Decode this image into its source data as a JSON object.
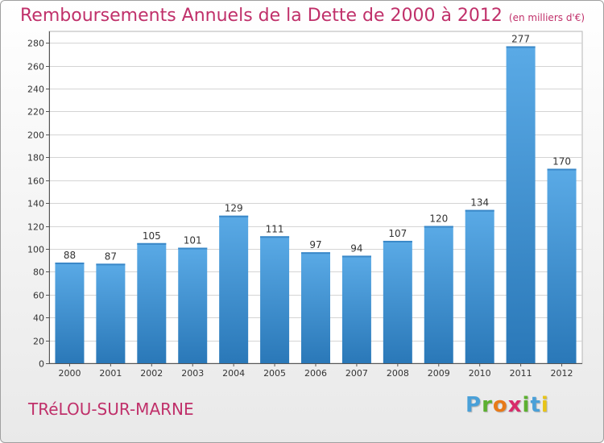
{
  "title": "Remboursements Annuels de la Dette de 2000 à 2012",
  "unit_note": "(en milliers d'€)",
  "commune": "TRéLOU-SUR-MARNE",
  "brand": {
    "name": "Proxiti",
    "letters": [
      "P",
      "r",
      "o",
      "x",
      "i",
      "t",
      "i"
    ],
    "letter_colors": [
      "#4aa0d8",
      "#5cb030",
      "#e87a18",
      "#d82a6a",
      "#5cb030",
      "#4aa0d8",
      "#e8c418"
    ]
  },
  "colors": {
    "bar_top": "#5aaae6",
    "bar_bottom": "#2a78b8",
    "title": "#c0306a",
    "text": "#333333"
  },
  "chart_data": {
    "type": "bar",
    "categories": [
      "2000",
      "2001",
      "2002",
      "2003",
      "2004",
      "2005",
      "2006",
      "2007",
      "2008",
      "2009",
      "2010",
      "2011",
      "2012"
    ],
    "values": [
      88,
      87,
      105,
      101,
      129,
      111,
      97,
      94,
      107,
      120,
      134,
      277,
      170
    ],
    "data_labels": [
      "88",
      "87",
      "105",
      "101",
      "129",
      "111",
      "97",
      "94",
      "107",
      "120",
      "134",
      "277",
      "170"
    ],
    "yticks": [
      0,
      20,
      40,
      60,
      80,
      100,
      120,
      140,
      160,
      180,
      200,
      220,
      240,
      260,
      280
    ],
    "ytick_labels": [
      "0",
      "20",
      "40",
      "60",
      "80",
      "100",
      "120",
      "140",
      "160",
      "180",
      "200",
      "220",
      "240",
      "260",
      "280"
    ],
    "ylim": [
      0,
      290
    ],
    "grid": "horizontal",
    "legend": "none"
  }
}
